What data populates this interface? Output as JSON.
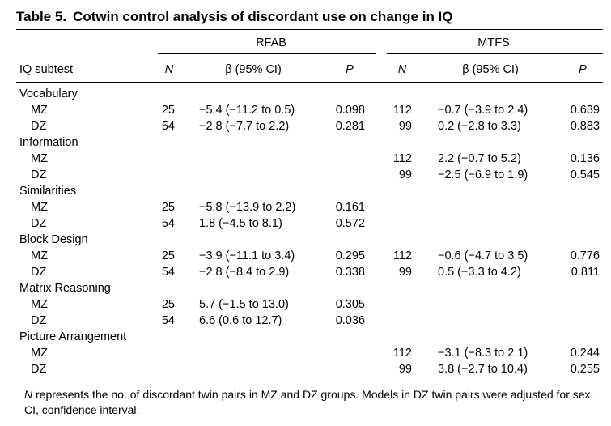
{
  "table": {
    "label": "Table 5.",
    "title": "Cotwin control analysis of discordant use on change in IQ",
    "groups": [
      "RFAB",
      "MTFS"
    ],
    "columns": {
      "subtest": "IQ subtest",
      "n": "N",
      "beta": "β (95% CI)",
      "p": "P"
    },
    "rows": [
      {
        "type": "section",
        "label": "Vocabulary"
      },
      {
        "type": "data",
        "label": "MZ",
        "rfab": {
          "n": "25",
          "beta": "−5.4 (−11.2 to 0.5)",
          "p": "0.098"
        },
        "mtfs": {
          "n": "112",
          "beta": "−0.7 (−3.9 to 2.4)",
          "p": "0.639"
        }
      },
      {
        "type": "data",
        "label": "DZ",
        "rfab": {
          "n": "54",
          "beta": "−2.8 (−7.7 to 2.2)",
          "p": "0.281"
        },
        "mtfs": {
          "n": "99",
          "beta": "0.2 (−2.8 to 3.3)",
          "p": "0.883"
        }
      },
      {
        "type": "section",
        "label": "Information"
      },
      {
        "type": "data",
        "label": "MZ",
        "rfab": null,
        "mtfs": {
          "n": "112",
          "beta": "2.2 (−0.7 to 5.2)",
          "p": "0.136"
        }
      },
      {
        "type": "data",
        "label": "DZ",
        "rfab": null,
        "mtfs": {
          "n": "99",
          "beta": "−2.5 (−6.9 to 1.9)",
          "p": "0.545"
        }
      },
      {
        "type": "section",
        "label": "Similarities"
      },
      {
        "type": "data",
        "label": "MZ",
        "rfab": {
          "n": "25",
          "beta": "−5.8 (−13.9 to 2.2)",
          "p": "0.161"
        },
        "mtfs": null
      },
      {
        "type": "data",
        "label": "DZ",
        "rfab": {
          "n": "54",
          "beta": "1.8 (−4.5 to 8.1)",
          "p": "0.572"
        },
        "mtfs": null
      },
      {
        "type": "section",
        "label": "Block Design"
      },
      {
        "type": "data",
        "label": "MZ",
        "rfab": {
          "n": "25",
          "beta": "−3.9 (−11.1 to 3.4)",
          "p": "0.295"
        },
        "mtfs": {
          "n": "112",
          "beta": "−0.6 (−4.7 to 3.5)",
          "p": "0.776"
        }
      },
      {
        "type": "data",
        "label": "DZ",
        "rfab": {
          "n": "54",
          "beta": "−2.8 (−8.4 to 2.9)",
          "p": "0.338"
        },
        "mtfs": {
          "n": "99",
          "beta": "0.5 (−3.3 to 4.2)",
          "p": "0.811"
        }
      },
      {
        "type": "section",
        "label": "Matrix Reasoning"
      },
      {
        "type": "data",
        "label": "MZ",
        "rfab": {
          "n": "25",
          "beta": "5.7 (−1.5 to 13.0)",
          "p": "0.305"
        },
        "mtfs": null
      },
      {
        "type": "data",
        "label": "DZ",
        "rfab": {
          "n": "54",
          "beta": "6.6 (0.6 to 12.7)",
          "p": "0.036"
        },
        "mtfs": null
      },
      {
        "type": "section",
        "label": "Picture Arrangement"
      },
      {
        "type": "data",
        "label": "MZ",
        "rfab": null,
        "mtfs": {
          "n": "112",
          "beta": "−3.1 (−8.3 to 2.1)",
          "p": "0.244"
        }
      },
      {
        "type": "data",
        "label": "DZ",
        "rfab": null,
        "mtfs": {
          "n": "99",
          "beta": "3.8 (−2.7 to 10.4)",
          "p": "0.255"
        }
      }
    ],
    "footnote": {
      "lead": "N",
      "text": " represents the no. of discordant twin pairs in MZ and DZ groups. Models in DZ twin pairs were adjusted for sex. CI, confidence interval."
    }
  }
}
